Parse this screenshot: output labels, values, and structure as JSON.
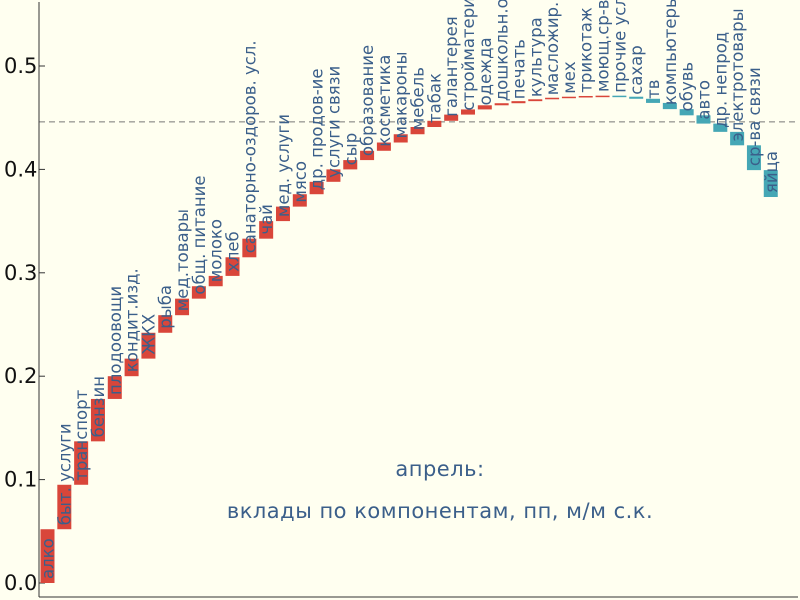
{
  "chart_data": {
    "type": "waterfall",
    "title": "апрель:",
    "subtitle": "вклады по компонентам, пп, м/м с.к.",
    "ylim": [
      0,
      0.56
    ],
    "yticks": [
      "0.0",
      "0.1",
      "0.2",
      "0.3",
      "0.4",
      "0.5"
    ],
    "reference_line": 0.446,
    "colors": {
      "positive": "#d9463a",
      "negative": "#45a7b5",
      "axis": "#333333",
      "reference": "#777777"
    },
    "categories": [
      "алко",
      "быт. услуги",
      "транспорт",
      "бензин",
      "плодоовощи",
      "кондит.изд.",
      "ЖКХ",
      "рыба",
      "мед.товары",
      "общ. питание",
      "молоко",
      "хлеб",
      "санаторно-оздоров. усл.",
      "чай",
      "мед. услуги",
      "мясо",
      "др. продов-ие",
      "услуги связи",
      "сыр",
      "образование",
      "косметика",
      "макароны",
      "мебель",
      "табак",
      "галантерея",
      "стройматериалы",
      "одежда",
      "дошкольн.обр",
      "печать",
      "культура",
      "масложир.",
      "мех",
      "трикотаж",
      "моющ.ср-ва",
      "прочие услуги",
      "сахар",
      "тв",
      "компьютеры",
      "обувь",
      "авто",
      "др. непрод",
      "электротовары",
      "ср-ва связи",
      "яйца"
    ],
    "values": [
      0.052,
      0.043,
      0.042,
      0.041,
      0.022,
      0.017,
      0.025,
      0.017,
      0.016,
      0.012,
      0.01,
      0.018,
      0.018,
      0.017,
      0.014,
      0.012,
      0.012,
      0.012,
      0.009,
      0.009,
      0.008,
      0.008,
      0.007,
      0.006,
      0.006,
      0.005,
      0.004,
      0.002,
      0.002,
      0.0018,
      0.0015,
      0.001,
      0.0007,
      0.0003,
      -0.001,
      -0.002,
      -0.004,
      -0.006,
      -0.006,
      -0.008,
      -0.008,
      -0.013,
      -0.024,
      -0.026
    ]
  }
}
